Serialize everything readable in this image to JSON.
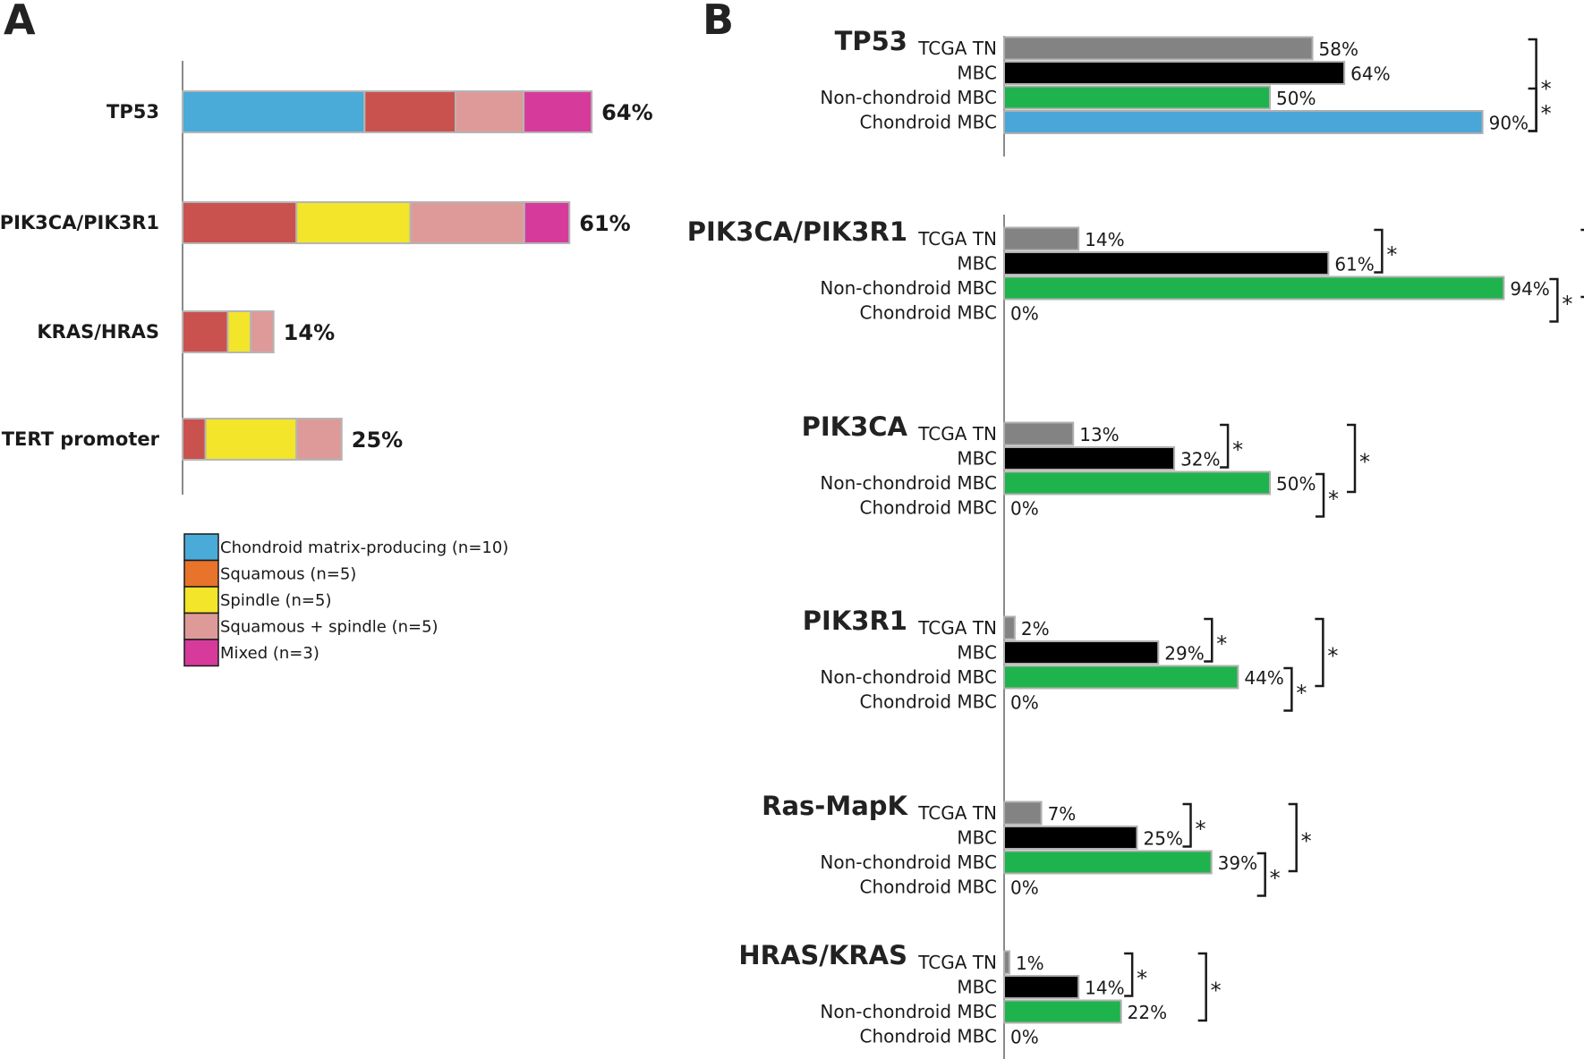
{
  "panels": {
    "a_label": "A",
    "b_label": "B"
  },
  "colors": {
    "chondroid": "#4aaad8",
    "squamous_legend": "#e8732a",
    "squamous_bar": "#c9524f",
    "spindle": "#f2e52a",
    "squamous_spindle": "#de9a98",
    "mixed": "#d63b9b",
    "tcga": "#838383",
    "mbc": "#000000",
    "nonchondroid": "#1fb34d",
    "chondroid_mbc": "#4aa6d8"
  },
  "chart_data": [
    {
      "type": "bar",
      "orientation": "horizontal",
      "stacked": true,
      "panel": "A",
      "xlim": [
        0,
        100
      ],
      "categories": [
        "TP53",
        "PIK3CA/PIK3R1",
        "KRAS/HRAS",
        "TERT promoter"
      ],
      "totals": [
        "64%",
        "61%",
        "14%",
        "25%"
      ],
      "series": [
        {
          "name": "Chondroid matrix-producing (n=10)",
          "color_key": "chondroid",
          "values": [
            28.6,
            0,
            0,
            0
          ]
        },
        {
          "name": "Squamous (n=5)",
          "color_key": "squamous_bar",
          "values": [
            14.3,
            17.9,
            7.1,
            3.6
          ]
        },
        {
          "name": "Spindle (n=5)",
          "color_key": "spindle",
          "values": [
            0,
            17.9,
            3.6,
            14.3
          ]
        },
        {
          "name": "Squamous + spindle (n=5)",
          "color_key": "squamous_spindle",
          "values": [
            10.7,
            17.9,
            3.6,
            7.1
          ]
        },
        {
          "name": "Mixed (n=3)",
          "color_key": "mixed",
          "values": [
            10.7,
            7.1,
            0,
            0
          ]
        }
      ],
      "legend": [
        {
          "label": "Chondroid matrix-producing (n=10)",
          "color_key": "chondroid"
        },
        {
          "label": "Squamous (n=5)",
          "color_key": "squamous_legend"
        },
        {
          "label": "Spindle (n=5)",
          "color_key": "spindle"
        },
        {
          "label": "Squamous + spindle (n=5)",
          "color_key": "squamous_spindle"
        },
        {
          "label": "Mixed (n=3)",
          "color_key": "mixed"
        }
      ]
    },
    {
      "type": "bar",
      "orientation": "horizontal",
      "panel": "B",
      "xlim": [
        0,
        100
      ],
      "group_categories": [
        "TCGA TN",
        "MBC",
        "Non-chondroid MBC",
        "Chondroid MBC"
      ],
      "series_colors": [
        "tcga",
        "mbc",
        "nonchondroid",
        "chondroid_mbc"
      ],
      "groups": [
        {
          "gene": "TP53",
          "values": [
            58,
            64,
            50,
            90
          ],
          "labels": [
            "58%",
            "64%",
            "50%",
            "90%"
          ],
          "brackets": [
            {
              "pair": [
                2,
                3
              ],
              "label": "*"
            },
            {
              "pair": [
                0,
                3
              ],
              "label": "*"
            }
          ]
        },
        {
          "gene": "PIK3CA/PIK3R1",
          "values": [
            14,
            61,
            94,
            0
          ],
          "labels": [
            "14%",
            "61%",
            "94%",
            "0%"
          ],
          "brackets": [
            {
              "pair": [
                0,
                1
              ],
              "label": "*"
            },
            {
              "pair": [
                0,
                2
              ],
              "label": "*"
            },
            {
              "pair": [
                2,
                3
              ],
              "label": "*"
            }
          ]
        },
        {
          "gene": "PIK3CA",
          "values": [
            13,
            32,
            50,
            0
          ],
          "labels": [
            "13%",
            "32%",
            "50%",
            "0%"
          ],
          "brackets": [
            {
              "pair": [
                0,
                1
              ],
              "label": "*"
            },
            {
              "pair": [
                0,
                2
              ],
              "label": "*"
            },
            {
              "pair": [
                2,
                3
              ],
              "label": "*"
            }
          ]
        },
        {
          "gene": "PIK3R1",
          "values": [
            2,
            29,
            44,
            0
          ],
          "labels": [
            "2%",
            "29%",
            "44%",
            "0%"
          ],
          "brackets": [
            {
              "pair": [
                0,
                1
              ],
              "label": "*"
            },
            {
              "pair": [
                0,
                2
              ],
              "label": "*"
            },
            {
              "pair": [
                2,
                3
              ],
              "label": "*"
            }
          ]
        },
        {
          "gene": "Ras-MapK",
          "values": [
            7,
            25,
            39,
            0
          ],
          "labels": [
            "7%",
            "25%",
            "39%",
            "0%"
          ],
          "brackets": [
            {
              "pair": [
                0,
                1
              ],
              "label": "*"
            },
            {
              "pair": [
                0,
                2
              ],
              "label": "*"
            },
            {
              "pair": [
                2,
                3
              ],
              "label": "*"
            }
          ]
        },
        {
          "gene": "HRAS/KRAS",
          "values": [
            1,
            14,
            22,
            0
          ],
          "labels": [
            "1%",
            "14%",
            "22%",
            "0%"
          ],
          "brackets": [
            {
              "pair": [
                0,
                1
              ],
              "label": "*"
            },
            {
              "pair": [
                0,
                2
              ],
              "label": "*"
            }
          ]
        }
      ]
    }
  ]
}
